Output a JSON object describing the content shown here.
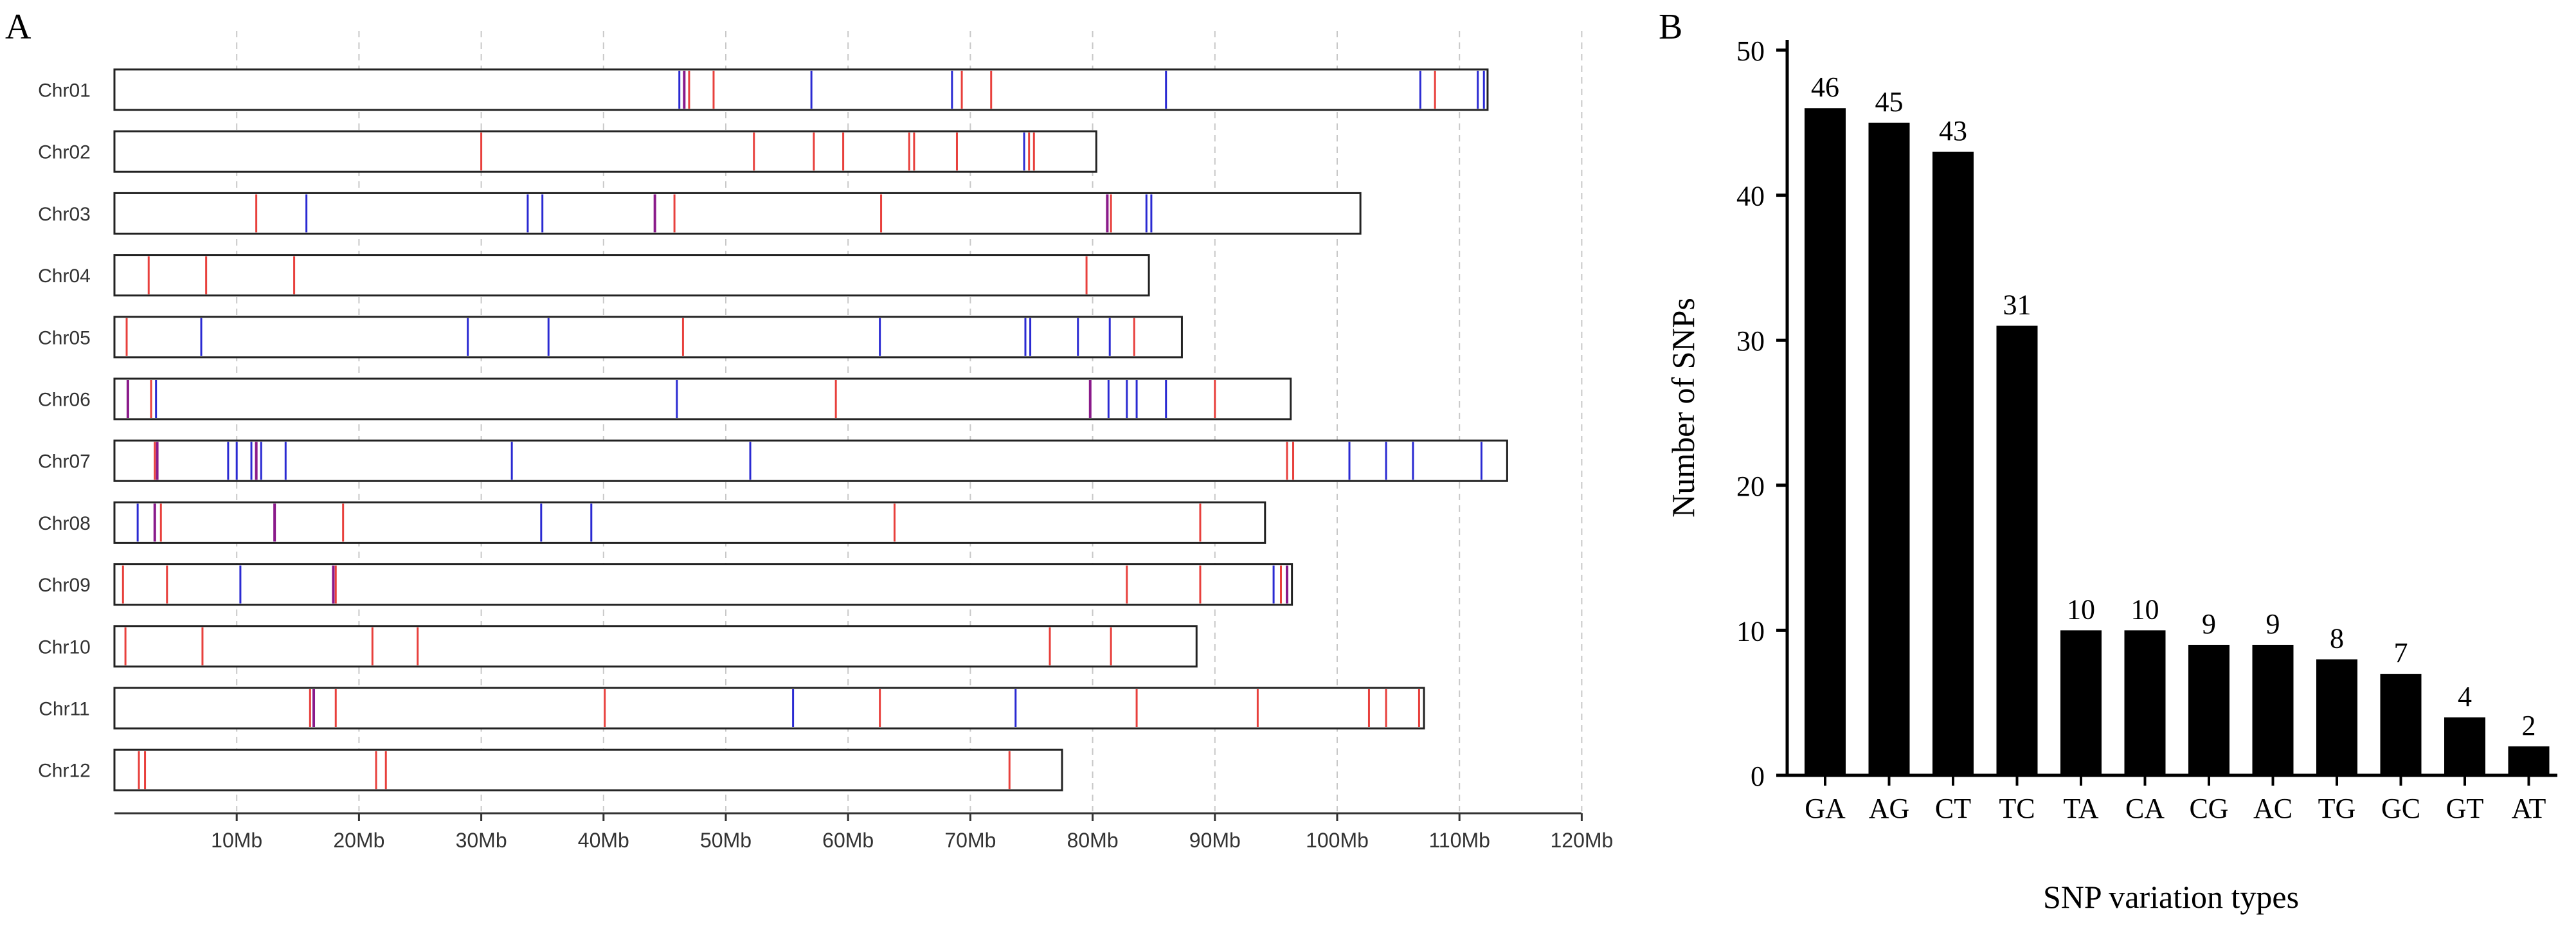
{
  "chart_data": [
    {
      "type": "chromosome-map",
      "panel": "A",
      "x_max_mb": 120,
      "ticks_mb": [
        10,
        20,
        30,
        40,
        50,
        60,
        70,
        80,
        90,
        100,
        110,
        120
      ],
      "tick_labels": [
        "10Mb",
        "20Mb",
        "30Mb",
        "40Mb",
        "50Mb",
        "60Mb",
        "70Mb",
        "80Mb",
        "90Mb",
        "100Mb",
        "110Mb",
        "120Mb"
      ],
      "colors": {
        "red": "#e8403c",
        "blue": "#2a2ad2",
        "purple": "#8a1a8a"
      },
      "chromosomes": [
        {
          "name": "Chr01",
          "length_mb": 112.3,
          "red": [
            47.0,
            49.0,
            69.3,
            71.7,
            108.0
          ],
          "blue": [
            46.2,
            57.0,
            68.5,
            86.0,
            106.8,
            111.5,
            112.0
          ],
          "purple": [
            46.6
          ]
        },
        {
          "name": "Chr02",
          "length_mb": 80.3,
          "red": [
            30.0,
            52.3,
            57.2,
            59.6,
            65.0,
            65.4,
            68.9,
            74.8,
            75.2
          ],
          "blue": [
            74.4
          ],
          "purple": []
        },
        {
          "name": "Chr03",
          "length_mb": 101.9,
          "red": [
            11.6,
            45.8,
            62.7,
            81.5
          ],
          "blue": [
            15.7,
            33.8,
            35.0,
            84.4,
            84.8
          ],
          "purple": [
            44.2,
            81.2
          ]
        },
        {
          "name": "Chr04",
          "length_mb": 84.6,
          "red": [
            2.8,
            7.5,
            14.7,
            79.5
          ],
          "blue": [],
          "purple": []
        },
        {
          "name": "Chr05",
          "length_mb": 87.3,
          "red": [
            1.0,
            46.5,
            83.4
          ],
          "blue": [
            7.1,
            28.9,
            35.5,
            62.6,
            74.5,
            74.9,
            78.8,
            81.4
          ],
          "purple": []
        },
        {
          "name": "Chr06",
          "length_mb": 96.2,
          "red": [
            3.0,
            59.0,
            90.0
          ],
          "blue": [
            3.4,
            46.0,
            81.3,
            82.8,
            83.6,
            86.0
          ],
          "purple": [
            1.1,
            79.8
          ]
        },
        {
          "name": "Chr07",
          "length_mb": 113.9,
          "red": [
            3.3,
            95.9,
            96.4
          ],
          "blue": [
            9.3,
            10.0,
            11.2,
            12.0,
            14.0,
            32.5,
            52.0,
            101.0,
            104.0,
            106.2,
            111.8
          ],
          "purple": [
            3.5,
            11.6
          ]
        },
        {
          "name": "Chr08",
          "length_mb": 94.1,
          "red": [
            3.8,
            18.7,
            63.8,
            88.8
          ],
          "blue": [
            1.9,
            34.9,
            39.0
          ],
          "purple": [
            3.3,
            13.1
          ]
        },
        {
          "name": "Chr09",
          "length_mb": 96.3,
          "red": [
            0.7,
            4.3,
            18.1,
            82.8,
            88.8,
            95.4
          ],
          "blue": [
            10.3,
            94.8
          ],
          "purple": [
            17.9,
            95.9
          ]
        },
        {
          "name": "Chr10",
          "length_mb": 88.5,
          "red": [
            0.9,
            7.2,
            21.1,
            24.8,
            76.5,
            81.5
          ],
          "blue": [],
          "purple": []
        },
        {
          "name": "Chr11",
          "length_mb": 107.1,
          "red": [
            16.0,
            18.1,
            40.1,
            62.6,
            83.6,
            93.5,
            102.6,
            104.0,
            106.7
          ],
          "blue": [
            55.5,
            73.7
          ],
          "purple": [
            16.3
          ]
        },
        {
          "name": "Chr12",
          "length_mb": 77.5,
          "red": [
            2.0,
            2.5,
            21.4,
            22.2,
            73.2
          ],
          "blue": [],
          "purple": []
        }
      ]
    },
    {
      "type": "bar",
      "panel": "B",
      "categories": [
        "GA",
        "AG",
        "CT",
        "TC",
        "TA",
        "CA",
        "CG",
        "AC",
        "TG",
        "GC",
        "GT",
        "AT"
      ],
      "values": [
        46,
        45,
        43,
        31,
        10,
        10,
        9,
        9,
        8,
        7,
        4,
        2
      ],
      "ylabel": "Number of SNPs",
      "xlabel": "SNP variation types",
      "ylim": [
        0,
        50
      ],
      "yticks": [
        0,
        10,
        20,
        30,
        40,
        50
      ],
      "bar_color": "#000000"
    }
  ]
}
